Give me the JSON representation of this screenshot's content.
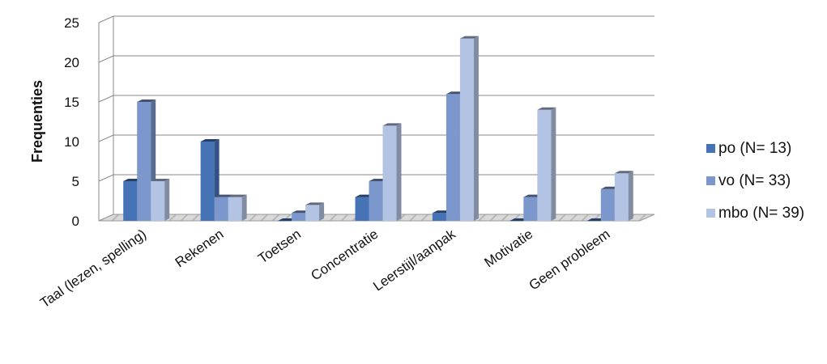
{
  "chart_data": {
    "type": "bar",
    "categories": [
      "Taal (lezen, spelling)",
      "Rekenen",
      "Toetsen",
      "Concentratie",
      "Leerstijl/aanpak",
      "Motivatie",
      "Geen probleem"
    ],
    "series": [
      {
        "name": "po (N= 13)",
        "values": [
          5,
          10,
          0,
          3,
          1,
          0,
          0
        ],
        "color": "#4673b6"
      },
      {
        "name": "vo (N= 33)",
        "values": [
          15,
          3,
          1,
          5,
          16,
          3,
          4
        ],
        "color": "#7b97cb"
      },
      {
        "name": "mbo (N= 39)",
        "values": [
          5,
          3,
          2,
          12,
          23,
          14,
          6
        ],
        "color": "#b3c3e3"
      }
    ],
    "ylabel": "Frequenties",
    "ylim": [
      0,
      25
    ],
    "yticks": [
      0,
      5,
      10,
      15,
      20,
      25
    ],
    "grid": true,
    "legend": "right",
    "style": "3d-clustered-column"
  }
}
